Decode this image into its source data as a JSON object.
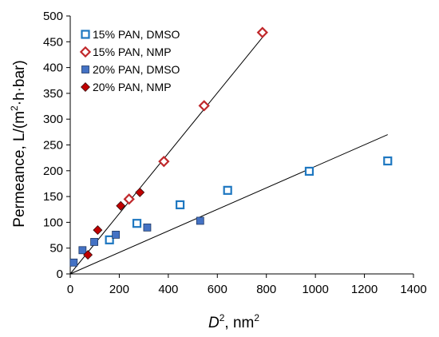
{
  "chart_data": {
    "type": "scatter",
    "xlabel": {
      "italic": "D",
      "sup": "2",
      "rest": ", nm",
      "unit_sup": "2"
    },
    "ylabel": {
      "text": "Permeance,  L/(m",
      "sup": "2",
      "rest": "·h·bar)"
    },
    "xlim": [
      0,
      1400
    ],
    "ylim": [
      0,
      500
    ],
    "x_ticks": [
      0,
      200,
      400,
      600,
      800,
      1000,
      1200,
      1400
    ],
    "y_ticks": [
      0,
      50,
      100,
      150,
      200,
      250,
      300,
      350,
      400,
      450,
      500
    ],
    "grid": false,
    "legend_position": "top-left",
    "series": [
      {
        "name": "15% PAN, DMSO",
        "marker": "square-open",
        "color": "#1F78C1",
        "points": [
          [
            160,
            66
          ],
          [
            272,
            98
          ],
          [
            448,
            134
          ],
          [
            642,
            162
          ],
          [
            975,
            199
          ],
          [
            1295,
            219
          ]
        ]
      },
      {
        "name": "15% PAN, NMP",
        "marker": "diamond-open",
        "color": "#C0282B",
        "points": [
          [
            240,
            145
          ],
          [
            382,
            218
          ],
          [
            546,
            326
          ],
          [
            784,
            468
          ]
        ]
      },
      {
        "name": "20% PAN, DMSO",
        "marker": "square-filled",
        "color": "#4472C4",
        "stroke": "#1F3864",
        "points": [
          [
            14,
            22
          ],
          [
            50,
            46
          ],
          [
            98,
            62
          ],
          [
            186,
            76
          ],
          [
            314,
            90
          ],
          [
            530,
            103
          ]
        ]
      },
      {
        "name": "20% PAN, NMP",
        "marker": "diamond-filled",
        "color": "#C00000",
        "stroke": "#3A0A0A",
        "points": [
          [
            72,
            37
          ],
          [
            112,
            85
          ],
          [
            206,
            132
          ],
          [
            284,
            158
          ]
        ]
      }
    ],
    "trendlines": [
      {
        "x": [
          0,
          790
        ],
        "y": [
          0,
          462
        ]
      },
      {
        "x": [
          0,
          1295
        ],
        "y": [
          0,
          270
        ]
      }
    ]
  }
}
